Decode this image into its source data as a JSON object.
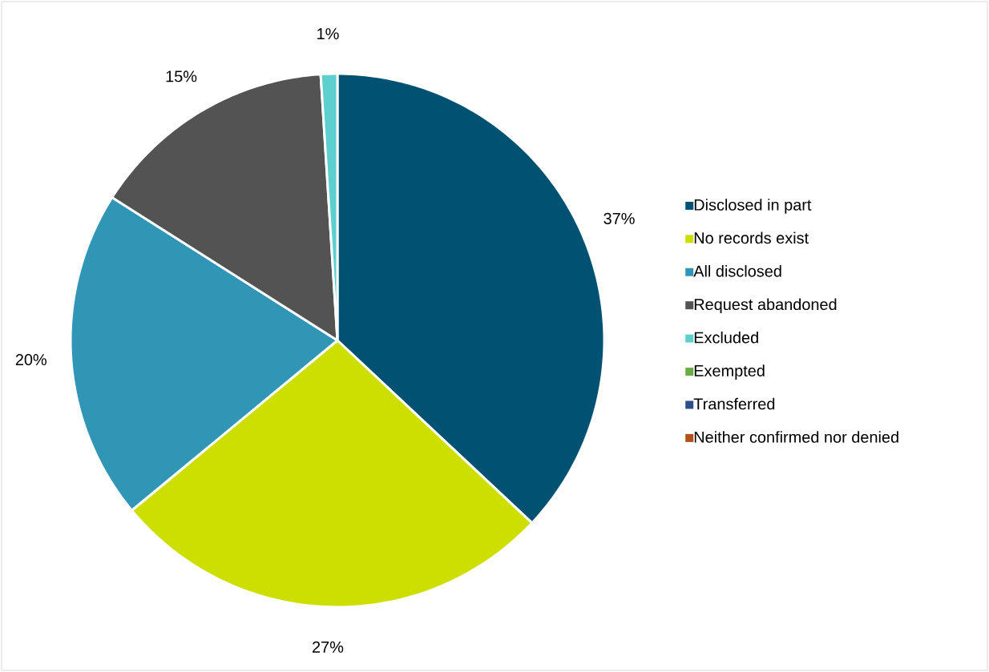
{
  "chart_data": {
    "type": "pie",
    "categories": [
      "Disclosed in part",
      "No records exist",
      "All disclosed",
      "Request abandoned",
      "Excluded",
      "Exempted",
      "Transferred",
      "Neither confirmed nor denied"
    ],
    "values": [
      37,
      27,
      20,
      15,
      1,
      0,
      0,
      0
    ],
    "value_labels": [
      "37%",
      "27%",
      "20%",
      "15%",
      "1%",
      null,
      null,
      null
    ],
    "colors": [
      "#005172",
      "#cddf00",
      "#3196b6",
      "#535353",
      "#5ecfcf",
      "#6aac46",
      "#2f4f8a",
      "#b0501a"
    ],
    "legend": "right"
  }
}
